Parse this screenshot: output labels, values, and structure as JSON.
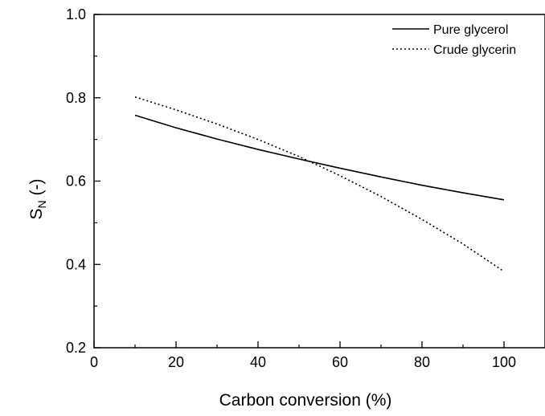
{
  "chart_data": {
    "type": "line",
    "xlabel": "Carbon conversion (%)",
    "ylabel": {
      "main": "S",
      "sub": "N",
      "suffix": " (-)"
    },
    "xlim": [
      0,
      110
    ],
    "ylim": [
      0.2,
      1.0
    ],
    "x_ticks": [
      0,
      20,
      40,
      60,
      80,
      100
    ],
    "y_ticks": [
      0.2,
      0.4,
      0.6,
      0.8,
      1.0
    ],
    "x_tick_labels": [
      "0",
      "20",
      "40",
      "60",
      "80",
      "100"
    ],
    "y_tick_labels": [
      "0.2",
      "0.4",
      "0.6",
      "0.8",
      "1.0"
    ],
    "grid": false,
    "legend_position": "top-right",
    "series": [
      {
        "name": "Pure glycerol",
        "style": "solid",
        "color": "#000000",
        "x": [
          10,
          20,
          30,
          40,
          50,
          60,
          70,
          80,
          90,
          100
        ],
        "y": [
          0.758,
          0.728,
          0.701,
          0.676,
          0.653,
          0.631,
          0.61,
          0.59,
          0.572,
          0.555
        ]
      },
      {
        "name": "Crude glycerin",
        "style": "dotted",
        "color": "#000000",
        "x": [
          10,
          20,
          30,
          40,
          50,
          60,
          70,
          80,
          90,
          100
        ],
        "y": [
          0.802,
          0.771,
          0.737,
          0.7,
          0.659,
          0.613,
          0.563,
          0.508,
          0.449,
          0.383
        ]
      }
    ]
  }
}
